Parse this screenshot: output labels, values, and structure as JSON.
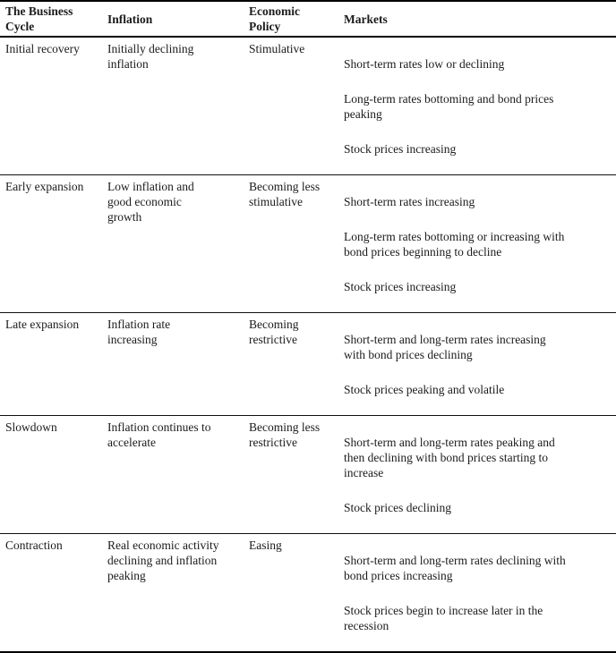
{
  "table": {
    "headers": [
      "The Business\nCycle",
      "Inflation",
      "Economic\nPolicy",
      "Markets"
    ],
    "rows": [
      {
        "cycle": "Initial recovery",
        "inflation": "Initially declining\ninflation",
        "policy": "Stimulative",
        "markets": [
          "Short-term rates low or declining",
          "Long-term rates bottoming and bond prices\npeaking",
          "Stock prices increasing"
        ]
      },
      {
        "cycle": "Early expansion",
        "inflation": "Low inflation and\ngood economic\ngrowth",
        "policy": "Becoming less\nstimulative",
        "markets": [
          "Short-term rates increasing",
          "Long-term rates bottoming or increasing with\nbond prices beginning to decline",
          "Stock prices increasing"
        ]
      },
      {
        "cycle": "Late expansion",
        "inflation": "Inflation rate\nincreasing",
        "policy": "Becoming\nrestrictive",
        "markets": [
          "Short-term and long-term rates increasing\nwith bond prices declining",
          "Stock prices peaking and volatile"
        ]
      },
      {
        "cycle": "Slowdown",
        "inflation": "Inflation continues to\naccelerate",
        "policy": "Becoming less\nrestrictive",
        "markets": [
          "Short-term and long-term rates peaking and\nthen declining with bond prices starting to\nincrease",
          "Stock prices declining"
        ]
      },
      {
        "cycle": "Contraction",
        "inflation": "Real economic activity\ndeclining and inflation\npeaking",
        "policy": "Easing",
        "markets": [
          "Short-term and long-term rates declining with\nbond prices increasing",
          "Stock prices begin to increase later in the\nrecession"
        ]
      }
    ]
  },
  "colors": {
    "text": "#1b1b1b",
    "rule": "#000000",
    "background": "#ffffff"
  }
}
